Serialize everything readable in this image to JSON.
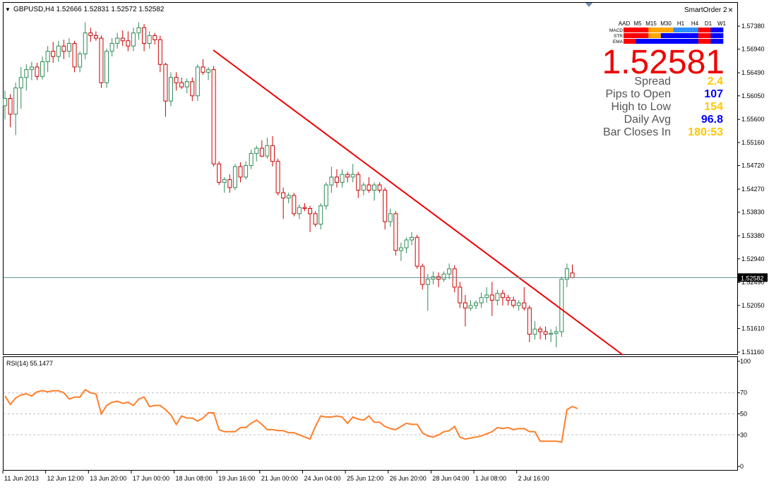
{
  "window": {
    "title": "GBPUSD,H4  1.52666 1.52831 1.52572 1.52582",
    "ea_name": "SmartOrder 2",
    "close_glyph": "×"
  },
  "panel": {
    "headers": [
      "AAD",
      "M5",
      "M15",
      "M30",
      "H1",
      "H4",
      "D1",
      "W1"
    ],
    "rows": [
      {
        "label": "MACD",
        "colors": [
          "#ff0000",
          "#ff0000",
          "#ffa500",
          "#ffa500",
          "#3090ff",
          "#3090ff",
          "#ff0000",
          "#0000ff"
        ]
      },
      {
        "label": "STR",
        "colors": [
          "#ff0000",
          "#ff0000",
          "#ffa500",
          "#0000ff",
          "#0000ff",
          "#0000ff",
          "#ff0000",
          "#0000ff"
        ]
      },
      {
        "label": "EMA",
        "colors": [
          "#ff0000",
          "#0000ff",
          "#0000ff",
          "#0000ff",
          "#0000ff",
          "#0000ff",
          "#ff0000",
          "#0000ff"
        ]
      }
    ],
    "price": "1.52581",
    "stats": [
      {
        "label": "Spread",
        "value": "2.4",
        "color": "#ffc800"
      },
      {
        "label": "Pips to Open",
        "value": "107",
        "color": "#0000ff"
      },
      {
        "label": "High to Low",
        "value": "154",
        "color": "#ffc800"
      },
      {
        "label": "Daily Avg",
        "value": "96.8",
        "color": "#0000ff"
      },
      {
        "label": "Bar Closes In",
        "value": "180:53",
        "color": "#ffc800"
      }
    ]
  },
  "chart_data": [
    {
      "type": "candlestick",
      "symbol": "GBPUSD",
      "timeframe": "H4",
      "current_price": 1.52582,
      "current_price_label": "1.52582",
      "ylim": [
        1.5105,
        1.5762
      ],
      "yticks": [
        "1.57380",
        "1.56940",
        "1.56490",
        "1.56050",
        "1.55600",
        "1.55160",
        "1.54720",
        "1.54270",
        "1.53830",
        "1.53380",
        "1.52940",
        "1.52490",
        "1.52050",
        "1.51610",
        "1.51160"
      ],
      "ytick_values": [
        1.5738,
        1.5694,
        1.5649,
        1.5605,
        1.556,
        1.5516,
        1.5472,
        1.5427,
        1.5383,
        1.5338,
        1.5294,
        1.5249,
        1.5205,
        1.5161,
        1.5116
      ],
      "xticks": [
        "11 Jun 2013",
        "12 Jun 12:00",
        "13 Jun 20:00",
        "17 Jun 00:00",
        "18 Jun 08:00",
        "19 Jun 16:00",
        "21 Jun 00:00",
        "24 Jun 04:00",
        "25 Jun 12:00",
        "26 Jun 20:00",
        "28 Jun 04:00",
        "1 Jul 08:00",
        "2 Jul 16:00"
      ],
      "xtick_bars": [
        0,
        8,
        16,
        24,
        32,
        40,
        48,
        56,
        64,
        72,
        80,
        88,
        96
      ],
      "up_color": "#2e8b57",
      "down_color": "#cc0000",
      "ohlc": [
        [
          1.5586,
          1.5615,
          1.556,
          1.56
        ],
        [
          1.56,
          1.5608,
          1.5545,
          1.557
        ],
        [
          1.557,
          1.563,
          1.553,
          1.562
        ],
        [
          1.562,
          1.566,
          1.558,
          1.564
        ],
        [
          1.564,
          1.5665,
          1.5615,
          1.5655
        ],
        [
          1.5655,
          1.567,
          1.5635,
          1.566
        ],
        [
          1.566,
          1.5668,
          1.5635,
          1.5642
        ],
        [
          1.5642,
          1.568,
          1.5636,
          1.567
        ],
        [
          1.567,
          1.57,
          1.565,
          1.569
        ],
        [
          1.569,
          1.5708,
          1.5668,
          1.568
        ],
        [
          1.568,
          1.571,
          1.567,
          1.57
        ],
        [
          1.57,
          1.5712,
          1.5675,
          1.569
        ],
        [
          1.569,
          1.5715,
          1.5678,
          1.5705
        ],
        [
          1.5705,
          1.571,
          1.565,
          1.566
        ],
        [
          1.566,
          1.569,
          1.565,
          1.5685
        ],
        [
          1.5685,
          1.5745,
          1.5675,
          1.5725
        ],
        [
          1.5725,
          1.5735,
          1.5708,
          1.572
        ],
        [
          1.572,
          1.5728,
          1.571,
          1.5715
        ],
        [
          1.5715,
          1.572,
          1.562,
          1.563
        ],
        [
          1.563,
          1.5695,
          1.562,
          1.569
        ],
        [
          1.569,
          1.5715,
          1.568,
          1.5705
        ],
        [
          1.5705,
          1.5725,
          1.5695,
          1.5715
        ],
        [
          1.5715,
          1.573,
          1.57,
          1.571
        ],
        [
          1.571,
          1.5728,
          1.569,
          1.57
        ],
        [
          1.57,
          1.5735,
          1.569,
          1.5725
        ],
        [
          1.5725,
          1.5745,
          1.5712,
          1.5735
        ],
        [
          1.5735,
          1.5742,
          1.569,
          1.5705
        ],
        [
          1.5705,
          1.5728,
          1.5695,
          1.572
        ],
        [
          1.572,
          1.5725,
          1.5703,
          1.5712
        ],
        [
          1.5712,
          1.572,
          1.565,
          1.5665
        ],
        [
          1.5665,
          1.5668,
          1.5565,
          1.5595
        ],
        [
          1.5595,
          1.565,
          1.5585,
          1.564
        ],
        [
          1.564,
          1.565,
          1.5615,
          1.563
        ],
        [
          1.563,
          1.564,
          1.5618,
          1.5622
        ],
        [
          1.5622,
          1.5638,
          1.561,
          1.5632
        ],
        [
          1.5632,
          1.564,
          1.5595,
          1.5605
        ],
        [
          1.5605,
          1.5665,
          1.5595,
          1.566
        ],
        [
          1.566,
          1.5675,
          1.5645,
          1.565
        ],
        [
          1.565,
          1.566,
          1.5635,
          1.5655
        ],
        [
          1.5655,
          1.5662,
          1.547,
          1.5475
        ],
        [
          1.5475,
          1.548,
          1.5435,
          1.544
        ],
        [
          1.544,
          1.545,
          1.542,
          1.5445
        ],
        [
          1.5445,
          1.5455,
          1.542,
          1.543
        ],
        [
          1.543,
          1.5475,
          1.5425,
          1.547
        ],
        [
          1.547,
          1.5478,
          1.544,
          1.545
        ],
        [
          1.545,
          1.548,
          1.5445,
          1.5472
        ],
        [
          1.5472,
          1.5502,
          1.5465,
          1.5495
        ],
        [
          1.5495,
          1.551,
          1.548,
          1.5505
        ],
        [
          1.5505,
          1.552,
          1.5488,
          1.549
        ],
        [
          1.549,
          1.5525,
          1.5485,
          1.551
        ],
        [
          1.551,
          1.5528,
          1.547,
          1.548
        ],
        [
          1.548,
          1.5485,
          1.5415,
          1.542
        ],
        [
          1.542,
          1.543,
          1.537,
          1.541
        ],
        [
          1.541,
          1.542,
          1.54,
          1.5415
        ],
        [
          1.5415,
          1.542,
          1.5375,
          1.538
        ],
        [
          1.538,
          1.5398,
          1.537,
          1.5392
        ],
        [
          1.5392,
          1.54,
          1.5385,
          1.539
        ],
        [
          1.539,
          1.5395,
          1.5345,
          1.538
        ],
        [
          1.538,
          1.5385,
          1.5355,
          1.536
        ],
        [
          1.536,
          1.54,
          1.535,
          1.5395
        ],
        [
          1.5395,
          1.544,
          1.5388,
          1.5435
        ],
        [
          1.5435,
          1.547,
          1.542,
          1.545
        ],
        [
          1.545,
          1.5465,
          1.543,
          1.544
        ],
        [
          1.544,
          1.5465,
          1.543,
          1.5455
        ],
        [
          1.5455,
          1.546,
          1.544,
          1.545
        ],
        [
          1.545,
          1.5475,
          1.544,
          1.5455
        ],
        [
          1.5455,
          1.546,
          1.541,
          1.5425
        ],
        [
          1.5425,
          1.544,
          1.5415,
          1.5435
        ],
        [
          1.5435,
          1.545,
          1.542,
          1.5425
        ],
        [
          1.5425,
          1.544,
          1.5405,
          1.5435
        ],
        [
          1.5435,
          1.544,
          1.542,
          1.5425
        ],
        [
          1.5425,
          1.543,
          1.535,
          1.5365
        ],
        [
          1.5365,
          1.539,
          1.5355,
          1.538
        ],
        [
          1.538,
          1.5385,
          1.53,
          1.531
        ],
        [
          1.531,
          1.5325,
          1.529,
          1.5315
        ],
        [
          1.5315,
          1.5335,
          1.5305,
          1.533
        ],
        [
          1.533,
          1.5345,
          1.532,
          1.5335
        ],
        [
          1.5335,
          1.534,
          1.5275,
          1.528
        ],
        [
          1.528,
          1.5285,
          1.5235,
          1.5245
        ],
        [
          1.5245,
          1.5265,
          1.5195,
          1.5255
        ],
        [
          1.5255,
          1.527,
          1.5245,
          1.526
        ],
        [
          1.526,
          1.5268,
          1.524,
          1.5255
        ],
        [
          1.5255,
          1.527,
          1.525,
          1.5265
        ],
        [
          1.5265,
          1.5285,
          1.5255,
          1.5275
        ],
        [
          1.5275,
          1.5282,
          1.523,
          1.524
        ],
        [
          1.524,
          1.525,
          1.52,
          1.521
        ],
        [
          1.521,
          1.5225,
          1.5165,
          1.52
        ],
        [
          1.52,
          1.5215,
          1.5195,
          1.5205
        ],
        [
          1.5205,
          1.5215,
          1.5198,
          1.521
        ],
        [
          1.521,
          1.523,
          1.52,
          1.522
        ],
        [
          1.522,
          1.524,
          1.521,
          1.5225
        ],
        [
          1.5225,
          1.525,
          1.5185,
          1.5215
        ],
        [
          1.5215,
          1.5235,
          1.5205,
          1.5228
        ],
        [
          1.5228,
          1.5235,
          1.5205,
          1.522
        ],
        [
          1.522,
          1.5225,
          1.5205,
          1.5215
        ],
        [
          1.5215,
          1.5222,
          1.52,
          1.5205
        ],
        [
          1.5205,
          1.5215,
          1.5195,
          1.521
        ],
        [
          1.521,
          1.524,
          1.5195,
          1.52
        ],
        [
          1.52,
          1.5205,
          1.5135,
          1.515
        ],
        [
          1.515,
          1.5175,
          1.514,
          1.516
        ],
        [
          1.516,
          1.5165,
          1.514,
          1.5155
        ],
        [
          1.5155,
          1.5165,
          1.514,
          1.515
        ],
        [
          1.515,
          1.516,
          1.5135,
          1.5152
        ],
        [
          1.5152,
          1.5165,
          1.5125,
          1.5155
        ],
        [
          1.5155,
          1.526,
          1.5145,
          1.5255
        ],
        [
          1.5255,
          1.5285,
          1.524,
          1.5275
        ],
        [
          1.5267,
          1.5283,
          1.5257,
          1.5258
        ]
      ]
    },
    {
      "type": "line",
      "title": "RSI(14) 55.1477",
      "ylim": [
        0,
        100
      ],
      "yticks": [
        "100",
        "70",
        "50",
        "30",
        "0"
      ],
      "ytick_values": [
        100,
        70,
        50,
        30,
        0
      ],
      "levels": [
        70,
        50,
        30
      ],
      "series": [
        {
          "color": "#ff7f2a",
          "values": [
            67,
            59,
            65,
            68,
            69,
            67,
            71,
            72,
            71,
            72,
            72,
            70,
            64,
            66,
            66,
            73,
            70,
            69,
            50,
            58,
            61,
            62,
            60,
            61,
            58,
            64,
            66,
            57,
            58,
            58,
            54,
            49,
            40,
            48,
            46,
            46,
            43,
            46,
            51,
            51,
            35,
            33,
            33,
            33,
            37,
            37,
            41,
            44,
            40,
            35,
            35,
            34,
            34,
            32,
            32,
            30,
            28,
            26,
            38,
            48,
            47,
            47,
            48,
            47,
            41,
            47,
            45,
            44,
            48,
            42,
            42,
            38,
            36,
            35,
            38,
            41,
            40,
            40,
            32,
            29,
            28,
            30,
            33,
            34,
            38,
            28,
            26,
            27,
            28,
            29,
            31,
            33,
            37,
            36,
            37,
            35,
            36,
            36,
            33,
            33,
            24,
            24,
            24,
            24,
            23,
            54,
            57,
            55
          ]
        }
      ]
    }
  ]
}
